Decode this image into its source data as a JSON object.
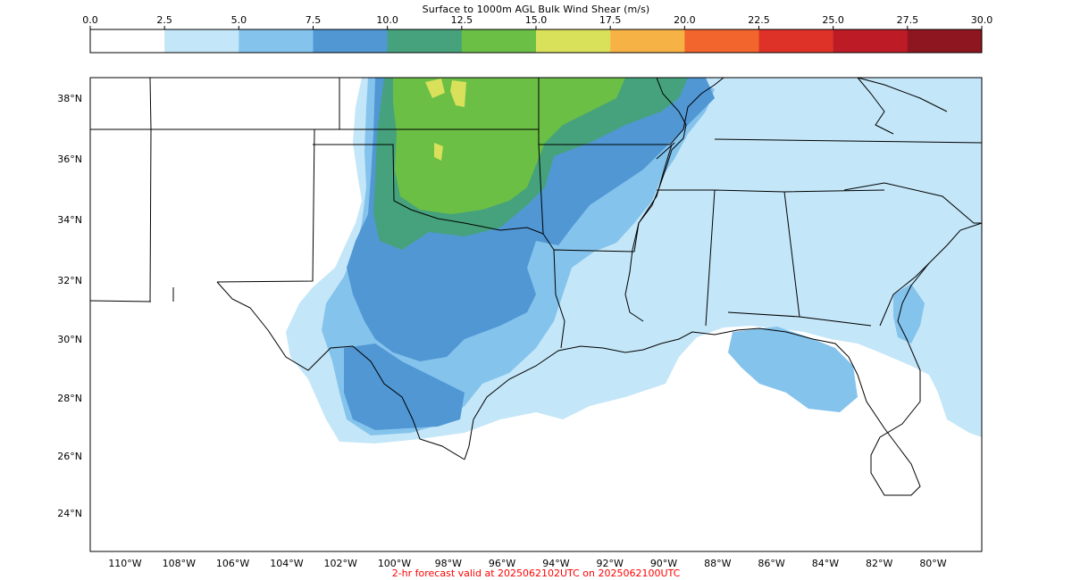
{
  "colorbar": {
    "title": "Surface to 1000m AGL Bulk Wind Shear (m/s)",
    "ticks": [
      "0.0",
      "2.5",
      "5.0",
      "7.5",
      "10.0",
      "12.5",
      "15.0",
      "17.5",
      "20.0",
      "22.5",
      "25.0",
      "27.5",
      "30.0"
    ],
    "colors": [
      "#ffffff",
      "#c3e6f8",
      "#84c3ec",
      "#5097d4",
      "#46a27c",
      "#6bbf45",
      "#d9e05a",
      "#f7b246",
      "#f2652c",
      "#de3229",
      "#bd1c26",
      "#8e1620"
    ]
  },
  "map": {
    "lat_labels": [
      "38°N",
      "36°N",
      "34°N",
      "32°N",
      "30°N",
      "28°N",
      "26°N",
      "24°N"
    ],
    "lon_labels": [
      "110°W",
      "108°W",
      "106°W",
      "104°W",
      "102°W",
      "100°W",
      "98°W",
      "96°W",
      "94°W",
      "92°W",
      "90°W",
      "88°W",
      "86°W",
      "84°W",
      "82°W",
      "80°W"
    ],
    "footer": "2-hr forecast valid at 2025062102UTC on 2025062100UTC",
    "footer_color": "#ff0000"
  }
}
